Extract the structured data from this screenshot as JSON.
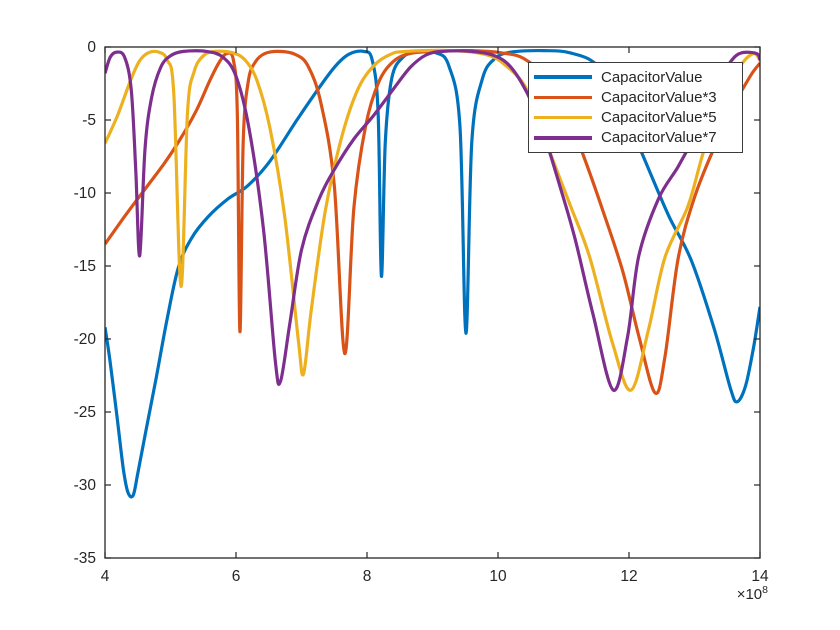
{
  "axes": {
    "xlim": [
      4,
      14
    ],
    "ylim": [
      -35,
      0
    ],
    "x_tick_values": [
      4,
      6,
      8,
      10,
      12,
      14
    ],
    "x_tick_labels": [
      "4",
      "6",
      "8",
      "10",
      "12",
      "14"
    ],
    "y_tick_values": [
      0,
      -5,
      -10,
      -15,
      -20,
      -25,
      -30,
      -35
    ],
    "y_tick_labels": [
      "0",
      "-5",
      "-10",
      "-15",
      "-20",
      "-25",
      "-30",
      "-35"
    ],
    "exponent": {
      "prefix": "×10",
      "power": "8"
    },
    "spine_color": "#262626",
    "label_color": "#262626",
    "background": "#ffffff"
  },
  "legend": {
    "border_color": "#3c3c3c",
    "background": "#ffffff",
    "text_color": "#262626"
  },
  "chart_data": {
    "type": "line",
    "title": "",
    "xlabel": "",
    "ylabel": "",
    "x_axis_multiplier": "×10^8",
    "xlim": [
      4,
      14
    ],
    "ylim": [
      -35,
      0
    ],
    "grid": false,
    "legend_position": "upper-right-inside",
    "series": [
      {
        "name": "CapacitorValue",
        "color": "#0072BD",
        "points": [
          [
            4.0,
            -19.2
          ],
          [
            4.08,
            -21.6
          ],
          [
            4.18,
            -25.2
          ],
          [
            4.28,
            -28.9
          ],
          [
            4.35,
            -30.5
          ],
          [
            4.43,
            -30.7
          ],
          [
            4.5,
            -29.2
          ],
          [
            4.62,
            -26.4
          ],
          [
            4.78,
            -22.7
          ],
          [
            4.95,
            -18.6
          ],
          [
            5.12,
            -15.1
          ],
          [
            5.32,
            -13.1
          ],
          [
            5.58,
            -11.6
          ],
          [
            5.88,
            -10.4
          ],
          [
            6.18,
            -9.5
          ],
          [
            6.52,
            -7.8
          ],
          [
            6.93,
            -5.0
          ],
          [
            7.22,
            -3.1
          ],
          [
            7.5,
            -1.4
          ],
          [
            7.72,
            -0.5
          ],
          [
            7.95,
            -0.3
          ],
          [
            8.08,
            -0.9
          ],
          [
            8.17,
            -4.5
          ],
          [
            8.22,
            -15.7
          ],
          [
            8.28,
            -6.5
          ],
          [
            8.38,
            -2.1
          ],
          [
            8.55,
            -0.7
          ],
          [
            8.75,
            -0.35
          ],
          [
            9.05,
            -0.4
          ],
          [
            9.25,
            -1.3
          ],
          [
            9.42,
            -5.5
          ],
          [
            9.51,
            -19.6
          ],
          [
            9.6,
            -6.5
          ],
          [
            9.76,
            -2.2
          ],
          [
            9.95,
            -0.8
          ],
          [
            10.2,
            -0.35
          ],
          [
            10.7,
            -0.25
          ],
          [
            11.1,
            -0.4
          ],
          [
            11.5,
            -1.2
          ],
          [
            11.85,
            -3.6
          ],
          [
            12.2,
            -7.3
          ],
          [
            12.6,
            -11.5
          ],
          [
            12.95,
            -14.6
          ],
          [
            13.3,
            -19.3
          ],
          [
            13.55,
            -23.4
          ],
          [
            13.65,
            -24.3
          ],
          [
            13.78,
            -23.2
          ],
          [
            13.9,
            -20.6
          ],
          [
            14.0,
            -17.8
          ]
        ]
      },
      {
        "name": "CapacitorValue*3",
        "color": "#D95319",
        "points": [
          [
            4.0,
            -13.5
          ],
          [
            4.3,
            -11.6
          ],
          [
            4.6,
            -9.8
          ],
          [
            4.9,
            -8.0
          ],
          [
            5.15,
            -6.3
          ],
          [
            5.4,
            -4.3
          ],
          [
            5.6,
            -2.3
          ],
          [
            5.75,
            -1.0
          ],
          [
            5.86,
            -0.45
          ],
          [
            5.96,
            -0.9
          ],
          [
            6.02,
            -4.5
          ],
          [
            6.06,
            -19.5
          ],
          [
            6.11,
            -6.5
          ],
          [
            6.19,
            -2.3
          ],
          [
            6.3,
            -1.0
          ],
          [
            6.44,
            -0.45
          ],
          [
            6.65,
            -0.3
          ],
          [
            6.9,
            -0.5
          ],
          [
            7.1,
            -1.3
          ],
          [
            7.3,
            -3.9
          ],
          [
            7.5,
            -9.5
          ],
          [
            7.66,
            -21.0
          ],
          [
            7.8,
            -11.0
          ],
          [
            7.98,
            -5.4
          ],
          [
            8.18,
            -2.4
          ],
          [
            8.4,
            -1.0
          ],
          [
            8.65,
            -0.45
          ],
          [
            9.0,
            -0.3
          ],
          [
            9.6,
            -0.25
          ],
          [
            10.05,
            -0.4
          ],
          [
            10.4,
            -0.8
          ],
          [
            10.75,
            -2.2
          ],
          [
            11.05,
            -4.6
          ],
          [
            11.3,
            -7.4
          ],
          [
            11.6,
            -11.2
          ],
          [
            11.9,
            -15.3
          ],
          [
            12.15,
            -19.8
          ],
          [
            12.4,
            -23.7
          ],
          [
            12.55,
            -21.2
          ],
          [
            12.75,
            -14.5
          ],
          [
            13.0,
            -10.3
          ],
          [
            13.3,
            -6.9
          ],
          [
            13.6,
            -4.0
          ],
          [
            13.85,
            -2.0
          ],
          [
            14.0,
            -1.1
          ]
        ]
      },
      {
        "name": "CapacitorValue*5",
        "color": "#EDB120",
        "points": [
          [
            4.0,
            -6.6
          ],
          [
            4.2,
            -4.6
          ],
          [
            4.38,
            -2.4
          ],
          [
            4.52,
            -1.0
          ],
          [
            4.66,
            -0.4
          ],
          [
            4.82,
            -0.35
          ],
          [
            4.95,
            -0.9
          ],
          [
            5.05,
            -3.2
          ],
          [
            5.16,
            -16.4
          ],
          [
            5.26,
            -4.5
          ],
          [
            5.36,
            -1.7
          ],
          [
            5.5,
            -0.6
          ],
          [
            5.68,
            -0.3
          ],
          [
            5.95,
            -0.4
          ],
          [
            6.14,
            -0.9
          ],
          [
            6.32,
            -2.3
          ],
          [
            6.52,
            -5.6
          ],
          [
            6.74,
            -11.5
          ],
          [
            6.95,
            -20.0
          ],
          [
            7.03,
            -22.4
          ],
          [
            7.15,
            -18.0
          ],
          [
            7.36,
            -11.3
          ],
          [
            7.6,
            -6.4
          ],
          [
            7.85,
            -3.0
          ],
          [
            8.1,
            -1.3
          ],
          [
            8.36,
            -0.5
          ],
          [
            8.6,
            -0.3
          ],
          [
            9.3,
            -0.25
          ],
          [
            9.8,
            -0.5
          ],
          [
            10.1,
            -1.2
          ],
          [
            10.45,
            -3.0
          ],
          [
            10.8,
            -7.3
          ],
          [
            11.1,
            -10.8
          ],
          [
            11.4,
            -14.4
          ],
          [
            11.75,
            -20.3
          ],
          [
            12.03,
            -23.5
          ],
          [
            12.3,
            -19.3
          ],
          [
            12.55,
            -14.4
          ],
          [
            12.9,
            -10.9
          ],
          [
            13.15,
            -7.0
          ],
          [
            13.45,
            -3.4
          ],
          [
            13.7,
            -1.3
          ],
          [
            13.9,
            -0.45
          ],
          [
            14.0,
            -0.9
          ]
        ]
      },
      {
        "name": "CapacitorValue*7",
        "color": "#7E2F8E",
        "points": [
          [
            4.0,
            -1.8
          ],
          [
            4.08,
            -0.7
          ],
          [
            4.18,
            -0.35
          ],
          [
            4.3,
            -0.7
          ],
          [
            4.4,
            -2.9
          ],
          [
            4.47,
            -8.5
          ],
          [
            4.53,
            -14.3
          ],
          [
            4.61,
            -7.0
          ],
          [
            4.71,
            -3.5
          ],
          [
            4.85,
            -1.4
          ],
          [
            5.0,
            -0.6
          ],
          [
            5.2,
            -0.3
          ],
          [
            5.55,
            -0.3
          ],
          [
            5.8,
            -0.7
          ],
          [
            6.0,
            -2.0
          ],
          [
            6.2,
            -5.6
          ],
          [
            6.42,
            -12.5
          ],
          [
            6.6,
            -21.5
          ],
          [
            6.68,
            -22.9
          ],
          [
            6.82,
            -19.0
          ],
          [
            7.0,
            -13.9
          ],
          [
            7.25,
            -10.6
          ],
          [
            7.5,
            -8.4
          ],
          [
            7.8,
            -6.3
          ],
          [
            8.1,
            -4.7
          ],
          [
            8.4,
            -2.9
          ],
          [
            8.66,
            -1.4
          ],
          [
            8.9,
            -0.55
          ],
          [
            9.15,
            -0.3
          ],
          [
            9.6,
            -0.3
          ],
          [
            9.95,
            -0.6
          ],
          [
            10.2,
            -1.4
          ],
          [
            10.45,
            -3.2
          ],
          [
            10.68,
            -5.7
          ],
          [
            10.95,
            -9.6
          ],
          [
            11.18,
            -13.2
          ],
          [
            11.45,
            -18.3
          ],
          [
            11.76,
            -23.5
          ],
          [
            11.98,
            -19.8
          ],
          [
            12.15,
            -14.3
          ],
          [
            12.45,
            -10.4
          ],
          [
            12.75,
            -8.2
          ],
          [
            13.0,
            -6.1
          ],
          [
            13.2,
            -4.1
          ],
          [
            13.4,
            -2.1
          ],
          [
            13.57,
            -0.9
          ],
          [
            13.72,
            -0.4
          ],
          [
            13.95,
            -0.45
          ],
          [
            14.0,
            -0.9
          ]
        ]
      }
    ]
  }
}
